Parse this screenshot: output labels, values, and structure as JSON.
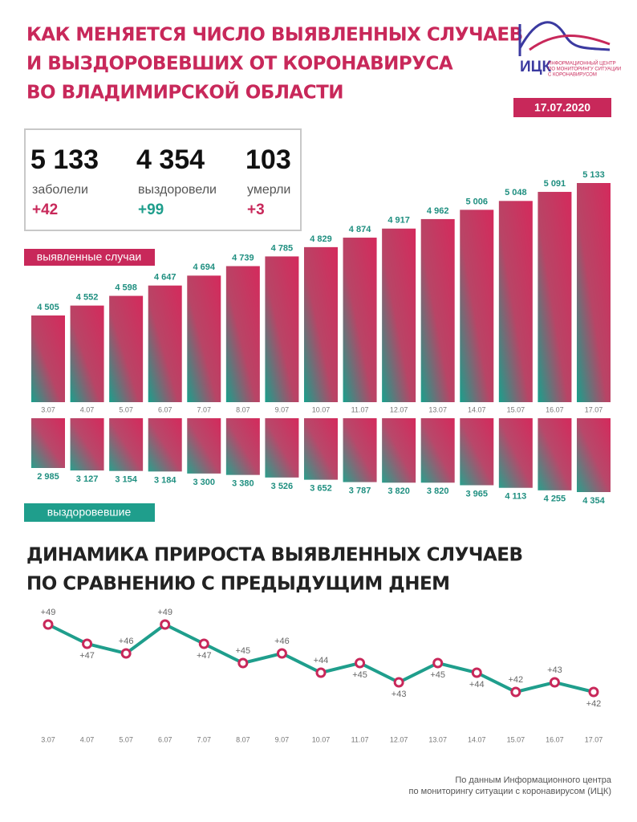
{
  "header": {
    "title": [
      "КАК МЕНЯЕТСЯ ЧИСЛО ВЫЯВЛЕННЫХ СЛУЧАЕВ",
      "И ВЫЗДОРОВЕВШИХ ОТ КОРОНАВИРУСА",
      "ВО ВЛАДИМИРСКОЙ ОБЛАСТИ"
    ],
    "date": "17.07.2020"
  },
  "logo": {
    "name": "ИЦК",
    "subtitle": [
      "ИНФОРМАЦИОННЫЙ ЦЕНТР",
      "ПО МОНИТОРИНГУ СИТУАЦИИ",
      "С КОРОНАВИРУСОМ"
    ]
  },
  "stats": [
    {
      "value": "5 133",
      "label": "заболели",
      "delta": "+42"
    },
    {
      "value": "4 354",
      "label": "выздоровели",
      "delta": "+99"
    },
    {
      "value": "103",
      "label": "умерли",
      "delta": "+3"
    }
  ],
  "chart_data": [
    {
      "type": "bar",
      "title": "выявленные случаи",
      "categories": [
        "3.07",
        "4.07",
        "5.07",
        "6.07",
        "7.07",
        "8.07",
        "9.07",
        "10.07",
        "11.07",
        "12.07",
        "13.07",
        "14.07",
        "15.07",
        "16.07",
        "17.07"
      ],
      "values": [
        4505,
        4552,
        4598,
        4647,
        4694,
        4739,
        4785,
        4829,
        4874,
        4917,
        4962,
        5006,
        5048,
        5091,
        5133
      ],
      "value_labels": [
        "4 505",
        "4 552",
        "4 598",
        "4 647",
        "4 694",
        "4 739",
        "4 785",
        "4 829",
        "4 874",
        "4 917",
        "4 962",
        "5 006",
        "5 048",
        "5 091",
        "5 133"
      ]
    },
    {
      "type": "bar",
      "title": "выздоровевшие",
      "values": [
        2985,
        3127,
        3154,
        3184,
        3300,
        3380,
        3526,
        3652,
        3787,
        3820,
        3820,
        3965,
        4113,
        4255,
        4354
      ],
      "value_labels": [
        "2 985",
        "3 127",
        "3 154",
        "3 184",
        "3 300",
        "3 380",
        "3 526",
        "3 652",
        "3 787",
        "3 820",
        "3 820",
        "3 965",
        "4 113",
        "4 255",
        "4 354"
      ]
    },
    {
      "type": "line",
      "title": [
        "ДИНАМИКА ПРИРОСТА ВЫЯВЛЕННЫХ СЛУЧАЕВ",
        "ПО СРАВНЕНИЮ С ПРЕДЫДУЩИМ ДНЕМ"
      ],
      "color": "#1f9e8c",
      "categories": [
        "3.07",
        "4.07",
        "5.07",
        "6.07",
        "7.07",
        "8.07",
        "9.07",
        "10.07",
        "11.07",
        "12.07",
        "13.07",
        "14.07",
        "15.07",
        "16.07",
        "17.07"
      ],
      "values": [
        49,
        47,
        46,
        49,
        47,
        45,
        46,
        44,
        45,
        43,
        45,
        44,
        42,
        43,
        42
      ],
      "value_labels": [
        "+49",
        "+47",
        "+46",
        "+49",
        "+47",
        "+45",
        "+46",
        "+44",
        "+45",
        "+43",
        "+45",
        "+44",
        "+42",
        "+43",
        "+42"
      ]
    }
  ],
  "footer": [
    "По данным Информационного центра",
    "по мониторингу ситуации с коронавирусом (ИЦК)"
  ]
}
